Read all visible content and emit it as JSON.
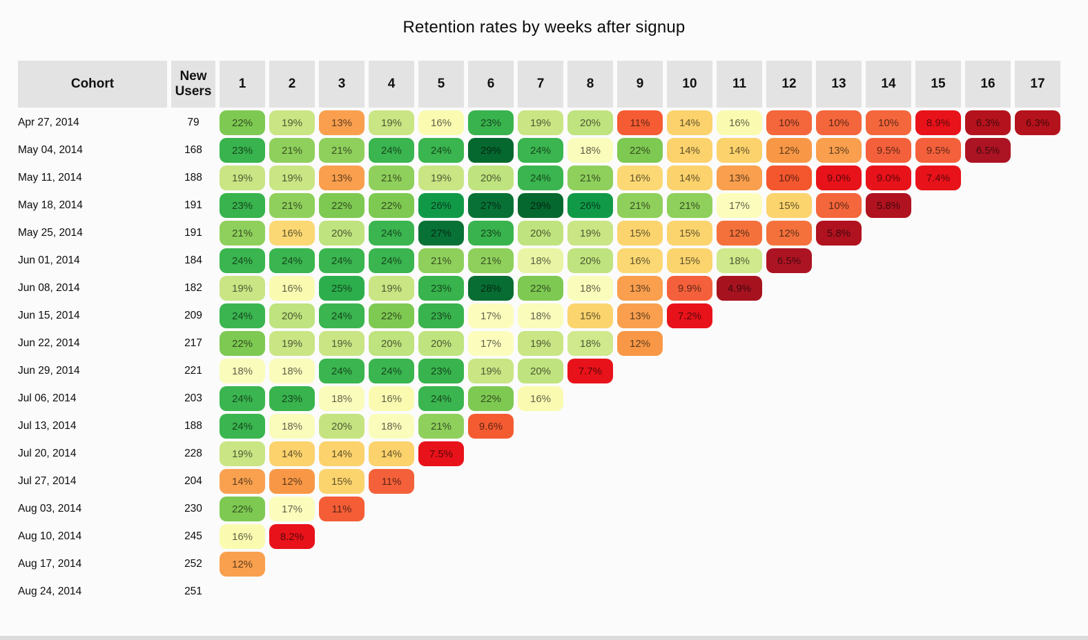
{
  "title": "Retention rates by weeks after signup",
  "chart_data": {
    "type": "heatmap",
    "title": "Retention rates by weeks after signup",
    "cohort_header": "Cohort",
    "new_users_header": "New Users",
    "week_columns": [
      "1",
      "2",
      "3",
      "4",
      "5",
      "6",
      "7",
      "8",
      "9",
      "10",
      "11",
      "12",
      "13",
      "14",
      "15",
      "16",
      "17"
    ],
    "value_unit": "%",
    "header_bg": "#e3e3e3",
    "page_bg": "#fbfbfb",
    "rows": [
      {
        "cohort": "Apr 27, 2014",
        "new_users": "79",
        "values": [
          22,
          19,
          13,
          19,
          16,
          23,
          19,
          20,
          11,
          14,
          16,
          10,
          10,
          10,
          8.9,
          6.3,
          6.3
        ],
        "colors": [
          "#7ec952",
          "#c9e584",
          "#f99f4e",
          "#c9e584",
          "#fafbb1",
          "#38b34d",
          "#c9e584",
          "#bfe37e",
          "#f55c33",
          "#fbd26c",
          "#fafbb1",
          "#f4663c",
          "#f4663c",
          "#f4663c",
          "#e8121a",
          "#b4121c",
          "#b4121c"
        ]
      },
      {
        "cohort": "May 04, 2014",
        "new_users": "168",
        "values": [
          23,
          21,
          21,
          24,
          24,
          29,
          24,
          18,
          22,
          14,
          14,
          12,
          13,
          9.5,
          9.5,
          6.5
        ],
        "colors": [
          "#38b34d",
          "#8fd05c",
          "#8fd05c",
          "#3ab54f",
          "#3ab54f",
          "#05682f",
          "#3ab54f",
          "#fafcbc",
          "#7ec952",
          "#fbd26c",
          "#fbd26c",
          "#f89847",
          "#f99f4e",
          "#f4603b",
          "#f4603b",
          "#ad1423"
        ]
      },
      {
        "cohort": "May 11, 2014",
        "new_users": "188",
        "values": [
          19,
          19,
          13,
          21,
          19,
          20,
          24,
          21,
          16,
          14,
          13,
          10,
          9.0,
          9.0,
          7.4
        ],
        "colors": [
          "#c9e584",
          "#c9e584",
          "#f99f4e",
          "#8fd05c",
          "#c9e584",
          "#bfe37e",
          "#3ab54f",
          "#8fd05c",
          "#fbd873",
          "#fbd26c",
          "#f99f4e",
          "#f4572e",
          "#e8121a",
          "#e8121a",
          "#e8121a"
        ]
      },
      {
        "cohort": "May 18, 2014",
        "new_users": "191",
        "values": [
          23,
          21,
          22,
          22,
          26,
          27,
          29,
          26,
          21,
          21,
          17,
          15,
          10,
          5.8
        ],
        "colors": [
          "#38b34d",
          "#8fd05c",
          "#7ec952",
          "#7ec952",
          "#109a48",
          "#087236",
          "#05682f",
          "#109a48",
          "#8fd05c",
          "#8fd05c",
          "#fcfdbd",
          "#fbd46e",
          "#f4663c",
          "#b01220"
        ]
      },
      {
        "cohort": "May 25, 2014",
        "new_users": "191",
        "values": [
          21,
          16,
          20,
          24,
          27,
          23,
          20,
          19,
          15,
          15,
          12,
          12,
          5.8
        ],
        "colors": [
          "#8fd05c",
          "#fbd873",
          "#bfe37e",
          "#3ab54f",
          "#087236",
          "#38b34d",
          "#bfe37e",
          "#c9e584",
          "#fbd46e",
          "#fbd46e",
          "#f4713c",
          "#f4713c",
          "#b01220"
        ]
      },
      {
        "cohort": "Jun 01, 2014",
        "new_users": "184",
        "values": [
          24,
          24,
          24,
          24,
          21,
          21,
          18,
          20,
          16,
          15,
          18,
          6.5
        ],
        "colors": [
          "#3ab54f",
          "#3ab54f",
          "#3ab54f",
          "#3ab54f",
          "#8fd05c",
          "#8fd05c",
          "#e9f5a5",
          "#bfe37e",
          "#fbd873",
          "#fbd46e",
          "#cfe98c",
          "#ad1423"
        ]
      },
      {
        "cohort": "Jun 08, 2014",
        "new_users": "182",
        "values": [
          19,
          16,
          25,
          19,
          23,
          28,
          22,
          18,
          13,
          9.9,
          4.9
        ],
        "colors": [
          "#c9e584",
          "#fafbb1",
          "#2dae4c",
          "#c9e584",
          "#38b34d",
          "#076d33",
          "#7ec952",
          "#fafcbc",
          "#f99f4e",
          "#f4603b",
          "#a6131f"
        ]
      },
      {
        "cohort": "Jun 15, 2014",
        "new_users": "209",
        "values": [
          24,
          20,
          24,
          22,
          23,
          17,
          18,
          15,
          13,
          7.2
        ],
        "colors": [
          "#3ab54f",
          "#bfe37e",
          "#3ab54f",
          "#7ec952",
          "#38b34d",
          "#fcfdbd",
          "#fafcbc",
          "#fbd46e",
          "#f99f4e",
          "#e8121a"
        ]
      },
      {
        "cohort": "Jun 22, 2014",
        "new_users": "217",
        "values": [
          22,
          19,
          19,
          20,
          20,
          17,
          19,
          18,
          12
        ],
        "colors": [
          "#7ec952",
          "#c9e584",
          "#c9e584",
          "#bfe37e",
          "#bfe37e",
          "#fcfdbd",
          "#c9e584",
          "#cfe98c",
          "#f89847"
        ]
      },
      {
        "cohort": "Jun 29, 2014",
        "new_users": "221",
        "values": [
          18,
          18,
          24,
          24,
          23,
          19,
          20,
          7.7
        ],
        "colors": [
          "#fafcbc",
          "#fafcbc",
          "#3ab54f",
          "#3ab54f",
          "#38b34d",
          "#c9e584",
          "#bfe37e",
          "#e8121a"
        ]
      },
      {
        "cohort": "Jul 06, 2014",
        "new_users": "203",
        "values": [
          24,
          23,
          18,
          16,
          24,
          22,
          16
        ],
        "colors": [
          "#3ab54f",
          "#38b34d",
          "#fafcbc",
          "#fafbb1",
          "#3ab54f",
          "#7ec952",
          "#fafbb1"
        ]
      },
      {
        "cohort": "Jul 13, 2014",
        "new_users": "188",
        "values": [
          24,
          18,
          20,
          18,
          21,
          9.6
        ],
        "colors": [
          "#3ab54f",
          "#fafcbc",
          "#c5e481",
          "#fafcbc",
          "#8fd05c",
          "#f45b31"
        ]
      },
      {
        "cohort": "Jul 20, 2014",
        "new_users": "228",
        "values": [
          19,
          14,
          14,
          14,
          7.5
        ],
        "colors": [
          "#c9e584",
          "#fbd26c",
          "#fbd26c",
          "#fbd26c",
          "#e8121a"
        ]
      },
      {
        "cohort": "Jul 27, 2014",
        "new_users": "204",
        "values": [
          14,
          12,
          15,
          11
        ],
        "colors": [
          "#f9a14f",
          "#f89847",
          "#fbd46e",
          "#f4603a"
        ]
      },
      {
        "cohort": "Aug 03, 2014",
        "new_users": "230",
        "values": [
          22,
          17,
          11
        ],
        "colors": [
          "#7ec952",
          "#fcfdbd",
          "#f45d36"
        ]
      },
      {
        "cohort": "Aug 10, 2014",
        "new_users": "245",
        "values": [
          16,
          8.2
        ],
        "colors": [
          "#fafbb1",
          "#e8121a"
        ]
      },
      {
        "cohort": "Aug 17, 2014",
        "new_users": "252",
        "values": [
          12
        ],
        "colors": [
          "#f9a04e"
        ]
      },
      {
        "cohort": "Aug 24, 2014",
        "new_users": "251",
        "values": [],
        "colors": []
      }
    ]
  }
}
